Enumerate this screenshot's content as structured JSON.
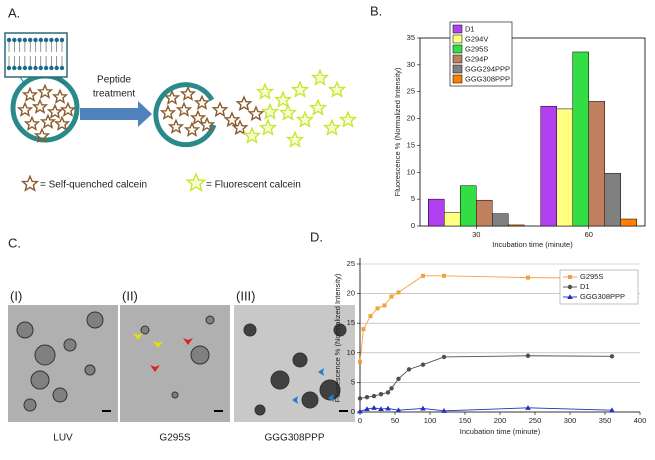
{
  "panels": {
    "a": {
      "label": "A.",
      "arrow_text": [
        "Peptide",
        "treatment"
      ],
      "legend": [
        "= Self-quenched calcein",
        "= Fluorescent calcein"
      ]
    },
    "c": {
      "label": "C.",
      "images": [
        {
          "numeral": "(I)",
          "caption": "LUV"
        },
        {
          "numeral": "(II)",
          "caption": "G295S"
        },
        {
          "numeral": "(III)",
          "caption": "GGG308PPP"
        }
      ]
    }
  },
  "chart_data": [
    {
      "type": "bar",
      "panel_label": "B.",
      "x_label": "Incubation time (minute)",
      "y_label": "Fluorescence % (Normalized Intensity)",
      "categories": [
        "30",
        "60"
      ],
      "series": [
        {
          "name": "D1",
          "color": "#b040f0",
          "values": [
            5.0,
            22.3
          ]
        },
        {
          "name": "G294V",
          "color": "#ffff80",
          "values": [
            2.5,
            21.8
          ]
        },
        {
          "name": "G295S",
          "color": "#33dd44",
          "values": [
            7.5,
            32.4
          ]
        },
        {
          "name": "G294P",
          "color": "#c08060",
          "values": [
            4.8,
            23.2
          ]
        },
        {
          "name": "GGG294PPP",
          "color": "#808080",
          "values": [
            2.3,
            9.8
          ]
        },
        {
          "name": "GGG308PPP",
          "color": "#ff8000",
          "values": [
            0.2,
            1.3
          ]
        }
      ],
      "ylim": [
        0,
        35
      ],
      "yticks": [
        0,
        5,
        10,
        15,
        20,
        25,
        30,
        35
      ],
      "grid": false,
      "legend": "top-left"
    },
    {
      "type": "line",
      "panel_label": "D.",
      "x_label": "Incubation time (minute)",
      "y_label": "Fluorescence % (Normalized Intensity)",
      "series": [
        {
          "name": "G295S",
          "color": "#f5a040",
          "marker": "square",
          "x": [
            0,
            5,
            15,
            25,
            35,
            45,
            55,
            90,
            120,
            240,
            360
          ],
          "values": [
            8.5,
            14,
            16.2,
            17.5,
            18,
            19.5,
            20.2,
            23,
            23,
            22.7,
            22.6
          ]
        },
        {
          "name": "D1",
          "color": "#505050",
          "marker": "circle",
          "x": [
            0,
            10,
            20,
            30,
            40,
            45,
            55,
            70,
            90,
            120,
            240,
            360
          ],
          "values": [
            2.3,
            2.5,
            2.7,
            3,
            3.3,
            4,
            5.6,
            7.2,
            8,
            9.3,
            9.5,
            9.4
          ]
        },
        {
          "name": "GGG308PPP",
          "color": "#2030c0",
          "marker": "triangle",
          "x": [
            0,
            10,
            20,
            30,
            40,
            55,
            90,
            120,
            240,
            360
          ],
          "values": [
            0.1,
            0.5,
            0.7,
            0.5,
            0.6,
            0.3,
            0.6,
            0.2,
            0.7,
            0.3
          ]
        }
      ],
      "xlim": [
        0,
        400
      ],
      "xticks": [
        0,
        50,
        100,
        150,
        200,
        250,
        300,
        350,
        400
      ],
      "ylim": [
        0,
        25
      ],
      "yticks": [
        0,
        5,
        10,
        15,
        20,
        25
      ],
      "grid": true,
      "legend": "top-right"
    }
  ]
}
